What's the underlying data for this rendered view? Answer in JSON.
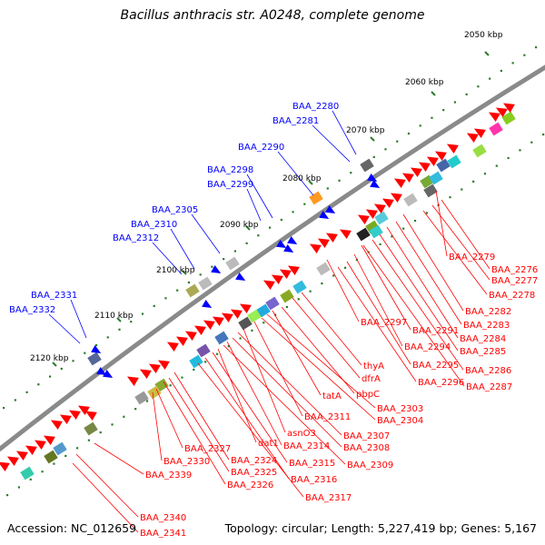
{
  "title": "Bacillus anthracis str. A0248, complete genome",
  "footer": {
    "accession": "Accession: NC_012659",
    "summary": "Topology: circular; Length: 5,227,419 bp; Genes: 5,167"
  },
  "colors": {
    "backbone": "#8a8a8a",
    "forward_gene": "#ff0000",
    "reverse_gene": "#0000ff",
    "forward_label": "#ff0000",
    "reverse_label": "#0000ff",
    "tick": "#2a7d2a",
    "text": "#000000"
  },
  "scale_labels": [
    "2050 kbp",
    "2060 kbp",
    "2070 kbp",
    "2080 kbp",
    "2090 kbp",
    "2100 kbp",
    "2110 kbp",
    "2120 kbp"
  ],
  "reverse_labels": [
    "BAA_2280",
    "BAA_2281",
    "BAA_2290",
    "BAA_2298",
    "BAA_2299",
    "BAA_2305",
    "BAA_2310",
    "BAA_2312",
    "BAA_2331",
    "BAA_2332"
  ],
  "forward_labels": [
    "BAA_2279",
    "BAA_2276",
    "BAA_2277",
    "BAA_2278",
    "BAA_2282",
    "BAA_2283",
    "BAA_2284",
    "BAA_2285",
    "BAA_2286",
    "BAA_2287",
    "BAA_2297",
    "BAA_2291",
    "BAA_2294",
    "BAA_2295",
    "BAA_2296",
    "thyA",
    "dfrA",
    "pbpC",
    "tatA",
    "BAA_2303",
    "BAA_2304",
    "BAA_2311",
    "asnO3",
    "BAA_2307",
    "BAA_2308",
    "BAA_2314",
    "BAA_2309",
    "dat1",
    "BAA_2315",
    "BAA_2316",
    "BAA_2317",
    "BAA_2324",
    "BAA_2325",
    "BAA_2326",
    "BAA_2327",
    "BAA_2330",
    "BAA_2339",
    "BAA_2340",
    "BAA_2341"
  ]
}
